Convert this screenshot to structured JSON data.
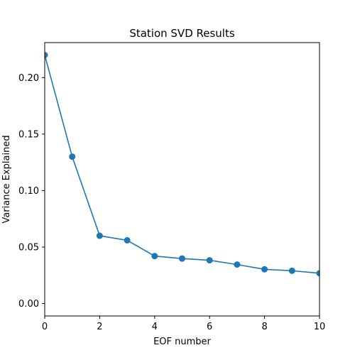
{
  "chart_data": {
    "type": "line",
    "title": "Station SVD Results",
    "xlabel": "EOF number",
    "ylabel": "Variance Explained",
    "xlim": [
      0,
      10
    ],
    "ylim": [
      -0.011,
      0.231
    ],
    "x_ticks": [
      0,
      2,
      4,
      6,
      8,
      10
    ],
    "y_ticks": [
      0.0,
      0.05,
      0.1,
      0.15,
      0.2
    ],
    "x_tick_labels": [
      "0",
      "2",
      "4",
      "6",
      "8",
      "10"
    ],
    "y_tick_labels": [
      "0.00",
      "0.05",
      "0.10",
      "0.15",
      "0.20"
    ],
    "grid": false,
    "series": [
      {
        "color": "#1f77b4",
        "marker": "circle",
        "x": [
          0,
          1,
          2,
          3,
          4,
          5,
          6,
          7,
          8,
          9,
          10
        ],
        "y": [
          0.22,
          0.13,
          0.06,
          0.056,
          0.042,
          0.0398,
          0.0383,
          0.0345,
          0.0303,
          0.029,
          0.0268
        ]
      }
    ]
  }
}
